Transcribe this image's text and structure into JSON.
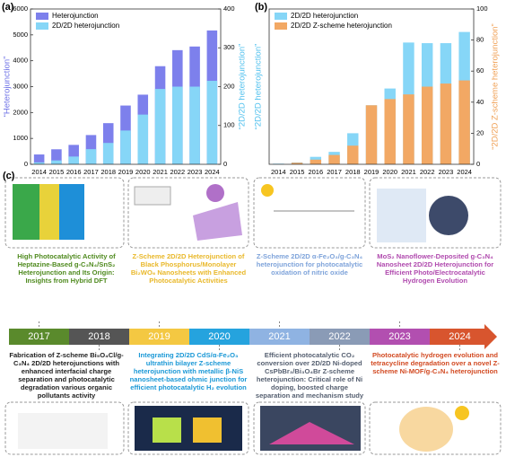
{
  "chart_data": [
    {
      "type": "bar",
      "panel_label": "(a)",
      "categories": [
        "2014",
        "2015",
        "2016",
        "2017",
        "2018",
        "2019",
        "2020",
        "2021",
        "2022",
        "2023",
        "2024"
      ],
      "y_label": "“Heterojunction”",
      "y_label_color": "#6b6fe6",
      "y2_label": "“2D/2D heterojunction”",
      "y2_label_color": "#4fc0ee",
      "ylim": [
        0,
        6000
      ],
      "yticks": [
        0,
        1000,
        2000,
        3000,
        4000,
        5000,
        6000
      ],
      "y2lim": [
        0,
        400
      ],
      "y2ticks": [
        0,
        100,
        200,
        300,
        400
      ],
      "legend": "top-left",
      "series": [
        {
          "name": "Heterojunction",
          "color": "#7d80ec",
          "axis": "y",
          "values": [
            380,
            580,
            750,
            1130,
            1590,
            2270,
            2690,
            3790,
            4410,
            4550,
            5170
          ]
        },
        {
          "name": "2D/2D heterojunction",
          "color": "#86d6f7",
          "axis": "y2",
          "values": [
            5,
            10,
            20,
            39,
            55,
            87,
            128,
            194,
            200,
            200,
            215
          ]
        }
      ]
    },
    {
      "type": "bar",
      "panel_label": "(b)",
      "categories": [
        "2014",
        "2015",
        "2016",
        "2017",
        "2018",
        "2019",
        "2020",
        "2021",
        "2022",
        "2023",
        "2024"
      ],
      "y_label": "“2D/2D heterojunction”",
      "y_label_color": "#4fc0ee",
      "y2_label": "“2D/2D Z-scheme heterojunction”",
      "y2_label_color": "#f0a055",
      "ylim": [
        0,
        250
      ],
      "y2lim": [
        0,
        100
      ],
      "y2ticks": [
        0,
        20,
        40,
        60,
        80,
        100
      ],
      "legend": "top-left",
      "series": [
        {
          "name": "2D/2D heterojunction",
          "color": "#86d6f7",
          "axis": "y",
          "values": [
            1,
            3,
            12,
            20,
            50,
            95,
            122,
            196,
            195,
            195,
            213
          ]
        },
        {
          "name": "2D/2D Z-scheme heterojunction",
          "color": "#f2a864",
          "axis": "y2",
          "values": [
            0,
            1,
            3,
            6,
            12,
            38,
            42,
            45,
            50,
            52,
            54
          ]
        }
      ]
    }
  ],
  "timeline": {
    "panel_label": "(c)",
    "items": [
      {
        "year": "2017",
        "color": "#5a8a2c",
        "text_color": "#4f8a1e",
        "title": "High Photocatalytic Activity of Heptazine-Based g-C₃N₄/SnS₂ Heterojunction and Its Origin: Insights from Hybrid DFT"
      },
      {
        "year": "2018",
        "color": "#555555",
        "text_color": "#222222",
        "title": "Fabrication of Z-scheme Bi₅O₄Cl/g-C₃N₄ 2D/2D heterojunctions with enhanced interfacial charge separation and photocatalytic degradation various organic pollutants activity"
      },
      {
        "year": "2019",
        "color": "#f4c842",
        "text_color": "#e9b82a",
        "title": "Z-Scheme 2D/2D Heterojunction of Black Phosphorus/Monolayer Bi₂WO₆ Nanosheets with Enhanced Photocatalytic Activities"
      },
      {
        "year": "2020",
        "color": "#25a3de",
        "text_color": "#1a98d6",
        "title": "Integrating 2D/2D CdS/α-Fe₂O₃ ultrathin bilayer Z-scheme heterojunction with metallic β-NiS nanosheet-based ohmic junction for efficient photocatalytic H₂ evolution"
      },
      {
        "year": "2021",
        "color": "#8fb3e2",
        "text_color": "#7ea3da",
        "title": "Z-Scheme 2D/2D α-Fe₂O₃/g-C₃N₄ heterojunction for photocatalytic oxidation of nitric oxide"
      },
      {
        "year": "2022",
        "color": "#8a9bb6",
        "text_color": "#555f70",
        "title": "Efficient photocatalytic CO₂ conversion over 2D/2D Ni-doped CsPbBr₃/Bi₃O₄Br Z-scheme heterojunction: Critical role of Ni doping, boosted charge separation and mechanism study"
      },
      {
        "year": "2023",
        "color": "#b24fb0",
        "text_color": "#b04aae",
        "title": "MoS₂ Nanoflower-Deposited g-C₃N₄ Nanosheet 2D/2D Heterojunction for Efficient Photo/Electrocatalytic Hydrogen Evolution"
      },
      {
        "year": "2024",
        "color": "#d8552e",
        "text_color": "#d24a22",
        "title": "Photocatalytic hydrogen evolution and tetracycline degradation over a novel Z-scheme Ni-MOF/g-C₃N₄ heterojunction"
      }
    ]
  }
}
